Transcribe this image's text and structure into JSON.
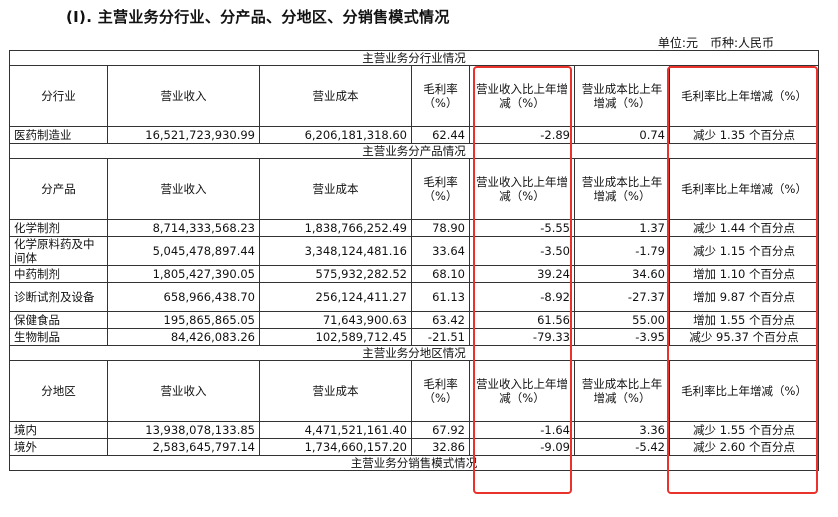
{
  "heading": "(I).  主营业务分行业、分产品、分地区、分销售模式情况",
  "unit": {
    "unit_text": "单位:元",
    "currency_text": "币种:人民币"
  },
  "accent_color": "#e8322b",
  "columns": {
    "revenue": "营业收入",
    "cost": "营业成本",
    "margin": "毛利率（%）",
    "rev_change": "营业收入比上年增减（%）",
    "cost_change": "营业成本比上年增减（%）",
    "margin_change": "毛利率比上年增减（%）"
  },
  "sections": {
    "industry": {
      "title": "主营业务分行业情况",
      "first_col": "分行业",
      "rows": [
        {
          "name": "医药制造业",
          "revenue": "16,521,723,930.99",
          "cost": "6,206,181,318.60",
          "margin": "62.44",
          "rev_change": "-2.89",
          "cost_change": "0.74",
          "margin_change": "减少 1.35 个百分点"
        }
      ]
    },
    "product": {
      "title": "主营业务分产品情况",
      "first_col": "分产品",
      "rows": [
        {
          "name": "化学制剂",
          "revenue": "8,714,333,568.23",
          "cost": "1,838,766,252.49",
          "margin": "78.90",
          "rev_change": "-5.55",
          "cost_change": "1.37",
          "margin_change": "减少 1.44 个百分点"
        },
        {
          "name": "化学原料药及中间体",
          "revenue": "5,045,478,897.44",
          "cost": "3,348,124,481.16",
          "margin": "33.64",
          "rev_change": "-3.50",
          "cost_change": "-1.79",
          "margin_change": "减少 1.15 个百分点"
        },
        {
          "name": "中药制剂",
          "revenue": "1,805,427,390.05",
          "cost": "575,932,282.52",
          "margin": "68.10",
          "rev_change": "39.24",
          "cost_change": "34.60",
          "margin_change": "增加 1.10 个百分点"
        },
        {
          "name": "诊断试剂及设备",
          "revenue": "658,966,438.70",
          "cost": "256,124,411.27",
          "margin": "61.13",
          "rev_change": "-8.92",
          "cost_change": "-27.37",
          "margin_change": "增加 9.87 个百分点"
        },
        {
          "name": "保健食品",
          "revenue": "195,865,865.05",
          "cost": "71,643,900.63",
          "margin": "63.42",
          "rev_change": "61.56",
          "cost_change": "55.00",
          "margin_change": "增加 1.55 个百分点"
        },
        {
          "name": "生物制品",
          "revenue": "84,426,083.26",
          "cost": "102,589,712.45",
          "margin": "-21.51",
          "rev_change": "-79.33",
          "cost_change": "-3.95",
          "margin_change": "减少 95.37 个百分点"
        }
      ]
    },
    "region": {
      "title": "主营业务分地区情况",
      "first_col": "分地区",
      "rows": [
        {
          "name": "境内",
          "revenue": "13,938,078,133.85",
          "cost": "4,471,521,161.40",
          "margin": "67.92",
          "rev_change": "-1.64",
          "cost_change": "3.36",
          "margin_change": "减少 1.55 个百分点"
        },
        {
          "name": "境外",
          "revenue": "2,583,645,797.14",
          "cost": "1,734,660,157.20",
          "margin": "32.86",
          "rev_change": "-9.09",
          "cost_change": "-5.42",
          "margin_change": "减少 2.60 个百分点"
        }
      ]
    },
    "sales": {
      "title": "主营业务分销售模式情况"
    }
  }
}
